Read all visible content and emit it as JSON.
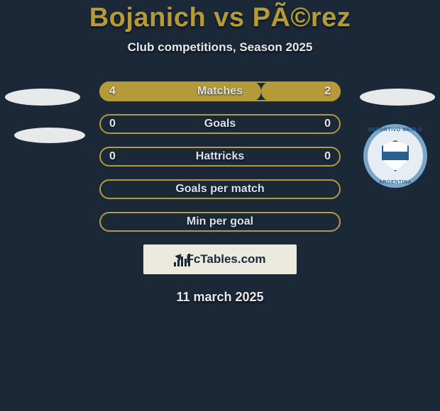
{
  "background_color": "#1a2838",
  "gold": "#b59a3a",
  "gold_border": "#b59a3a",
  "title": "Bojanich vs PÃ©rez",
  "title_color": "#b59a3a",
  "title_fontsize": 38,
  "subtitle": "Club competitions, Season 2025",
  "subtitle_color": "#e8e8e8",
  "subtitle_fontsize": 17,
  "date": "11 march 2025",
  "logo_text": "FcTables.com",
  "crest": {
    "top_text": "DEPORTIVO MERLO",
    "bottom_text": "ARGENTINA",
    "ring_color": "#7aa6c9",
    "inner_border": "#2a5f8f",
    "band_color": "#2a5f8f"
  },
  "rows": [
    {
      "label": "Matches",
      "left": "4",
      "right": "2",
      "left_fill_pct": 67,
      "right_fill_pct": 33,
      "left_fill_color": "#b59a3a",
      "right_fill_color": "#b59a3a",
      "show_values": true
    },
    {
      "label": "Goals",
      "left": "0",
      "right": "0",
      "left_fill_pct": 0,
      "right_fill_pct": 0,
      "show_values": true
    },
    {
      "label": "Hattricks",
      "left": "0",
      "right": "0",
      "left_fill_pct": 0,
      "right_fill_pct": 0,
      "show_values": true
    },
    {
      "label": "Goals per match",
      "left": "",
      "right": "",
      "left_fill_pct": 0,
      "right_fill_pct": 0,
      "show_values": false
    },
    {
      "label": "Min per goal",
      "left": "",
      "right": "",
      "left_fill_pct": 0,
      "right_fill_pct": 0,
      "show_values": false
    }
  ]
}
